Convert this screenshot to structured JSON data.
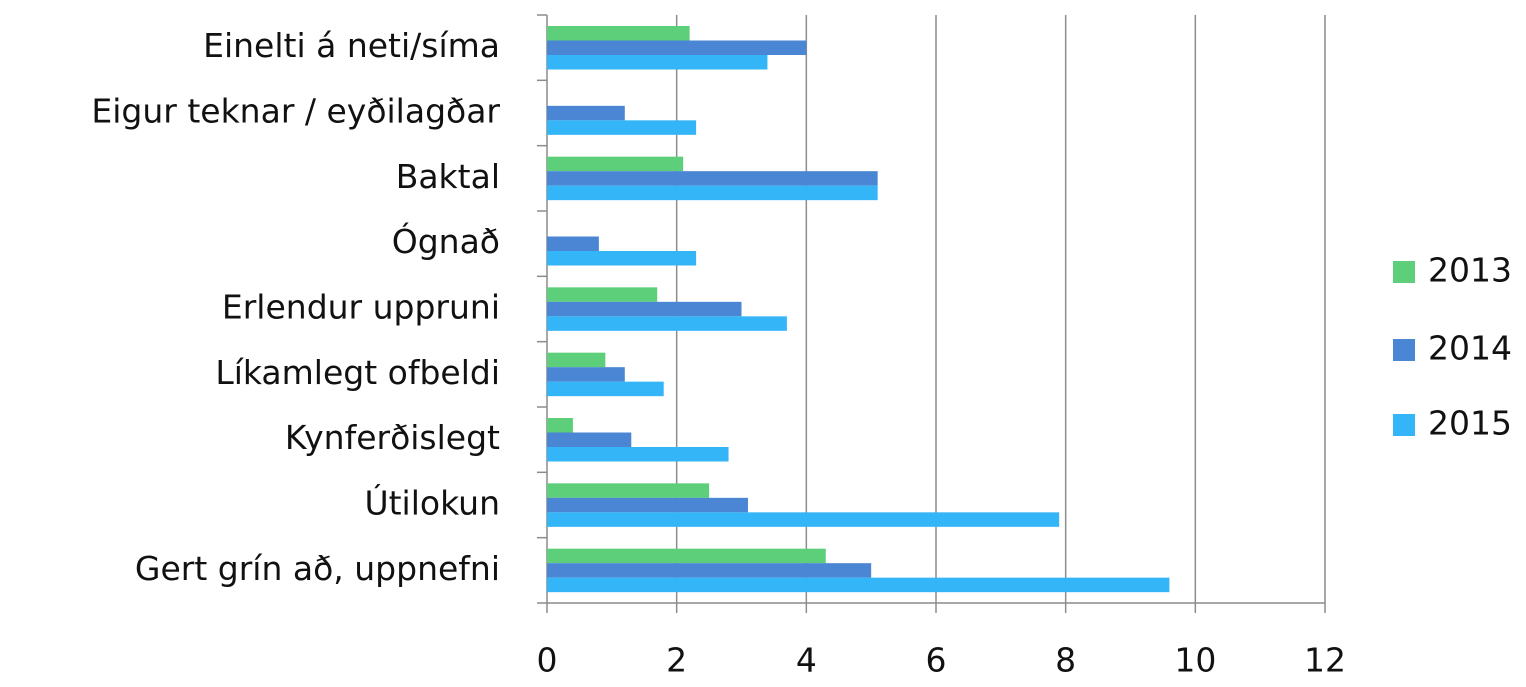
{
  "chart_data": {
    "type": "bar",
    "orientation": "horizontal",
    "categories": [
      "Einelti á neti/síma",
      "Eigur teknar / eyðilagðar",
      "Baktal",
      "Ógnað",
      "Erlendur uppruni",
      "Líkamlegt ofbeldi",
      "Kynferðislegt",
      "Útilokun",
      "Gert grín að, uppnefni"
    ],
    "series": [
      {
        "name": "2013",
        "color": "#5dcf7b",
        "values": [
          2.2,
          null,
          2.1,
          null,
          1.7,
          0.9,
          0.4,
          2.5,
          4.3
        ]
      },
      {
        "name": "2014",
        "color": "#4a86d4",
        "values": [
          4.0,
          1.2,
          5.1,
          0.8,
          3.0,
          1.2,
          1.3,
          3.1,
          5.0
        ]
      },
      {
        "name": "2015",
        "color": "#33b5f7",
        "values": [
          3.4,
          2.3,
          5.1,
          2.3,
          3.7,
          1.8,
          2.8,
          7.9,
          9.6
        ]
      }
    ],
    "xlim": [
      0,
      12
    ],
    "xticks": [
      0,
      2,
      4,
      6,
      8,
      10,
      12
    ],
    "grid": true,
    "legend": "right"
  }
}
